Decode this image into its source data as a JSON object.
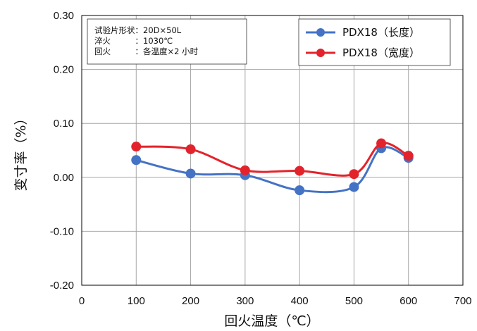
{
  "chart_data": {
    "type": "line",
    "title": "",
    "xlabel": "回火温度（℃）",
    "ylabel": "变寸率（%）",
    "xlim": [
      0,
      700
    ],
    "ylim": [
      -0.2,
      0.3
    ],
    "x_ticks": [
      "0",
      "100",
      "200",
      "300",
      "400",
      "500",
      "600",
      "700"
    ],
    "y_ticks": [
      "0.30",
      "0.20",
      "0.10",
      "0.00",
      "-0.10",
      "-0.20"
    ],
    "grid": true,
    "legend_position": "top-right",
    "series": [
      {
        "name": "PDX18（长度）",
        "color": "#4472c4",
        "x": [
          100,
          200,
          300,
          400,
          500,
          550,
          600
        ],
        "y": [
          0.032,
          0.007,
          0.004,
          -0.024,
          -0.018,
          0.054,
          0.036
        ]
      },
      {
        "name": "PDX18（宽度）",
        "color": "#e3232b",
        "x": [
          100,
          200,
          300,
          400,
          500,
          550,
          600
        ],
        "y": [
          0.057,
          0.052,
          0.013,
          0.012,
          0.006,
          0.063,
          0.04
        ]
      }
    ],
    "annotations": {
      "lines": [
        "试验片形状：20D×50L",
        "淬火　　　：1030℃",
        "回火　　　：各温度×2 小时"
      ]
    }
  }
}
